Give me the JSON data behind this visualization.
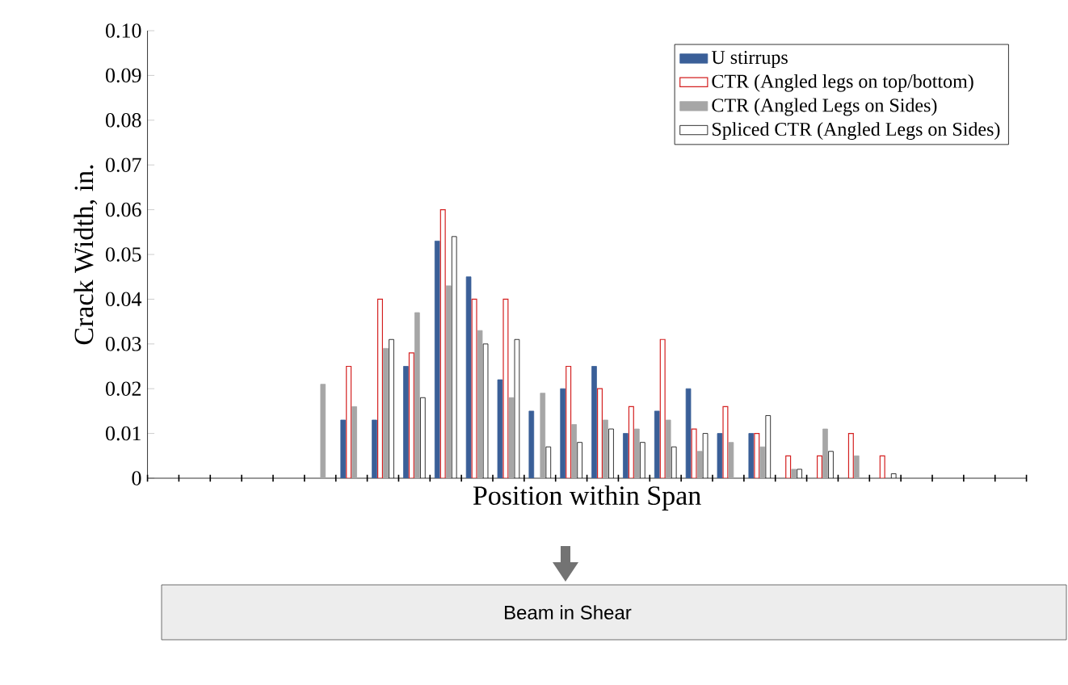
{
  "chart_data": {
    "type": "bar",
    "xlabel": "Position within Span",
    "ylabel": "Crack Width, in.",
    "categories": [
      null,
      null,
      null,
      null,
      null,
      null,
      null,
      null,
      null,
      null,
      null,
      null,
      null,
      null,
      null,
      null,
      null,
      null,
      null,
      null,
      null,
      null,
      null,
      null,
      null,
      null,
      null,
      null
    ],
    "series": [
      {
        "name": "U stirrups",
        "color": "#3a5f98",
        "values": [
          null,
          null,
          null,
          null,
          null,
          null,
          0.013,
          0.013,
          0.025,
          0.053,
          0.045,
          0.022,
          0.015,
          0.02,
          0.025,
          0.01,
          0.015,
          0.02,
          0.01,
          0.01,
          null,
          null,
          null,
          null,
          null,
          null,
          null,
          null
        ]
      },
      {
        "name": "CTR (Angled legs on top/bottom)",
        "color": "#d42020",
        "values": [
          null,
          null,
          null,
          null,
          null,
          null,
          0.025,
          0.04,
          0.028,
          0.06,
          0.04,
          0.04,
          null,
          0.025,
          0.02,
          0.016,
          0.031,
          0.011,
          0.016,
          0.01,
          0.005,
          0.005,
          0.01,
          0.005,
          null,
          null,
          null,
          null
        ]
      },
      {
        "name": "CTR (Angled Legs on Sides)",
        "color": "#a6a6a6",
        "values": [
          null,
          null,
          null,
          null,
          null,
          0.021,
          0.016,
          0.029,
          0.037,
          0.043,
          0.033,
          0.018,
          0.019,
          0.012,
          0.013,
          0.011,
          0.013,
          0.006,
          0.008,
          0.007,
          0.002,
          0.011,
          0.005,
          null,
          null,
          null,
          null,
          null
        ]
      },
      {
        "name": "Spliced CTR (Angled Legs on Sides)",
        "color": "#000000",
        "values": [
          null,
          null,
          null,
          null,
          null,
          null,
          null,
          0.031,
          0.018,
          0.054,
          0.03,
          0.031,
          0.007,
          0.008,
          0.011,
          0.008,
          0.007,
          0.01,
          null,
          0.014,
          0.002,
          0.006,
          null,
          0.001,
          null,
          null,
          null,
          null
        ]
      }
    ],
    "ylim": [
      0,
      0.1
    ],
    "yticks": [
      0,
      0.01,
      0.02,
      0.03,
      0.04,
      0.05,
      0.06,
      0.07,
      0.08,
      0.09,
      {
        "value": 0.1,
        "label": "0.10"
      }
    ],
    "tick_labels": "y",
    "legend": "top right",
    "annotations": [
      "Beam in Shear"
    ]
  }
}
